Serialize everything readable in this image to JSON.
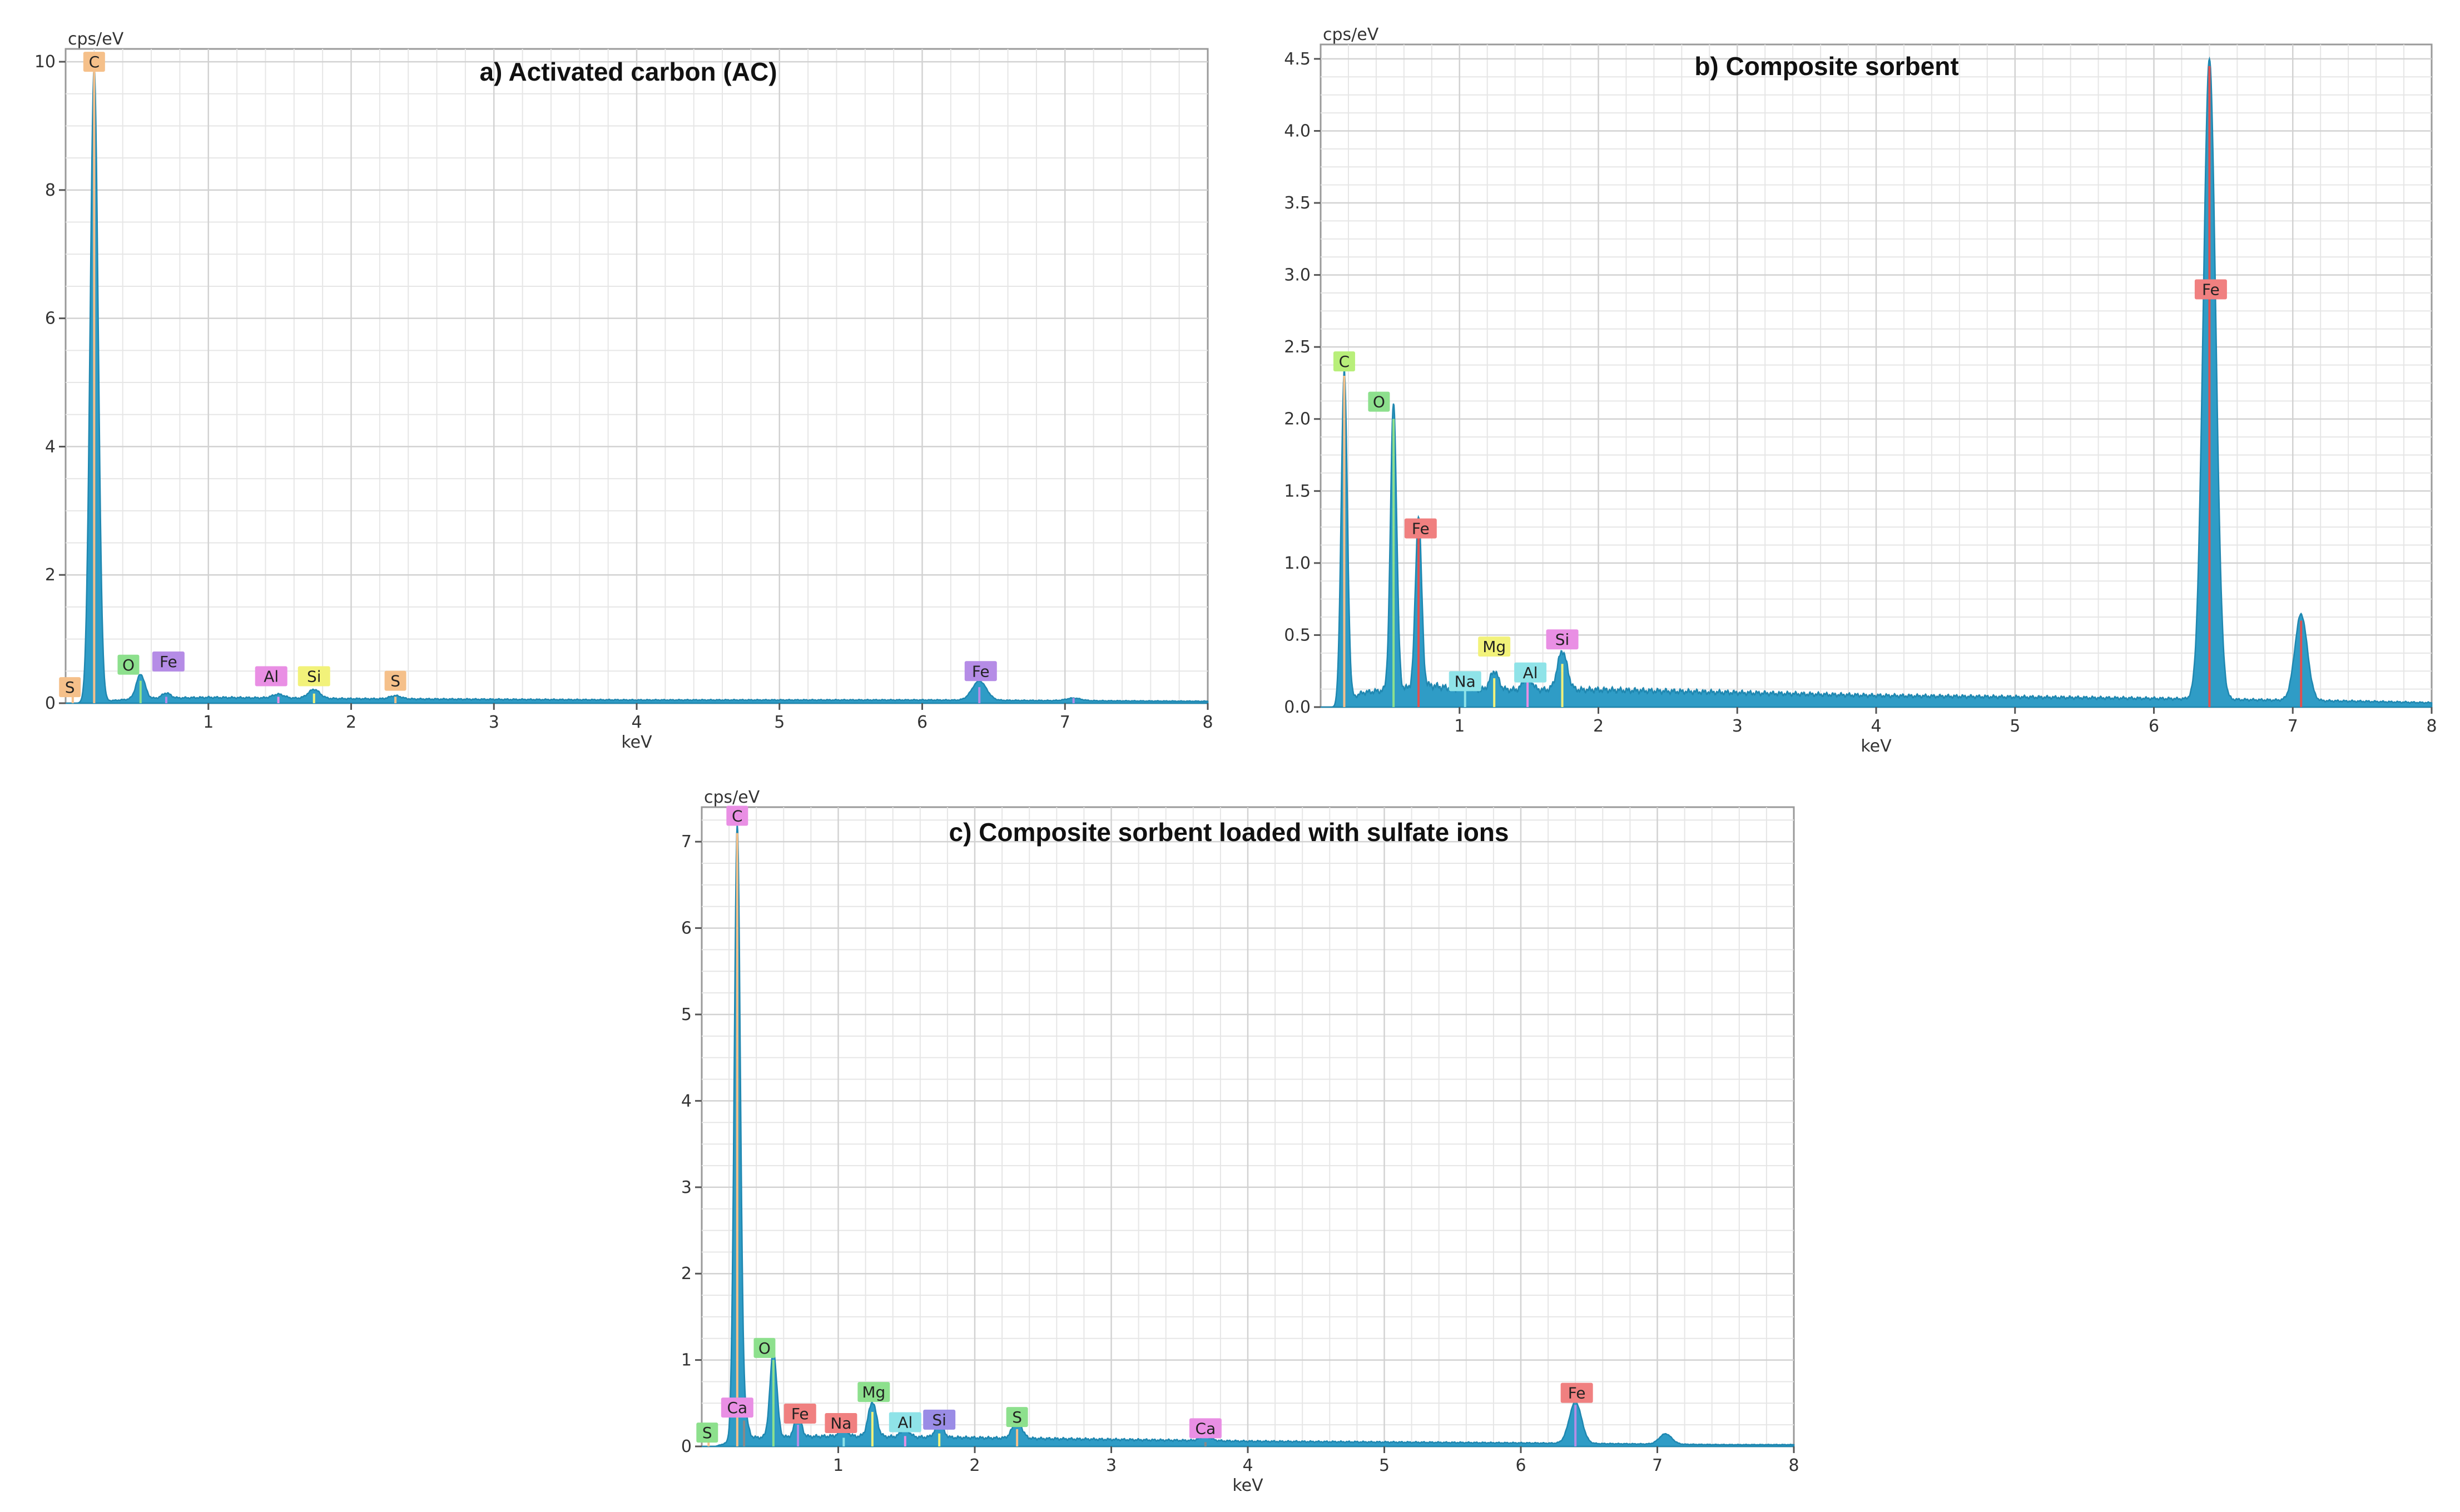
{
  "colors": {
    "spectrum": "#2f9cc6",
    "C": "#f5c08a",
    "O": "#8de08d",
    "Fe": "#b58ce6",
    "Al": "#e98fe4",
    "Si": "#f2f27a",
    "S": "#f5c08a",
    "Na": "#8fe3e8",
    "Mg": "#f2f27a"
  },
  "chart_data": [
    {
      "type": "line",
      "title": "a) Activated carbon (AC)",
      "xlabel": "keV",
      "ylabel": "cps/eV",
      "xlim": [
        0,
        8
      ],
      "ylim": [
        0,
        10.2
      ],
      "x_ticks": [
        1,
        2,
        3,
        4,
        5,
        6,
        7,
        8
      ],
      "x_tick_labels": [
        "1",
        "2",
        "3",
        "4",
        "5",
        "6",
        "7",
        "8"
      ],
      "y_ticks": [
        0,
        2,
        4,
        6,
        8,
        10
      ],
      "y_tick_labels": [
        "0",
        "2",
        "4",
        "6",
        "8",
        "10"
      ],
      "grid": true,
      "baseline": [
        [
          0.08,
          0.0
        ],
        [
          0.5,
          0.07
        ],
        [
          1.0,
          0.09
        ],
        [
          2.0,
          0.07
        ],
        [
          3.0,
          0.06
        ],
        [
          4.0,
          0.05
        ],
        [
          5.0,
          0.05
        ],
        [
          6.0,
          0.05
        ],
        [
          7.0,
          0.04
        ],
        [
          8.0,
          0.03
        ]
      ],
      "peaks": [
        {
          "x": 0.2,
          "y": 9.9,
          "w": 0.028
        },
        {
          "x": 0.525,
          "y": 0.38,
          "w": 0.03
        },
        {
          "x": 0.705,
          "y": 0.08,
          "w": 0.03
        },
        {
          "x": 1.49,
          "y": 0.06,
          "w": 0.04
        },
        {
          "x": 1.74,
          "y": 0.14,
          "w": 0.04
        },
        {
          "x": 2.31,
          "y": 0.05,
          "w": 0.04
        },
        {
          "x": 6.4,
          "y": 0.3,
          "w": 0.05
        },
        {
          "x": 7.06,
          "y": 0.04,
          "w": 0.05
        }
      ],
      "element_labels": [
        {
          "el": "C",
          "x": 0.2,
          "y": 10.0,
          "text": "C"
        },
        {
          "el": "S",
          "x": 0.03,
          "y": 0.25,
          "text": "S"
        },
        {
          "el": "O",
          "x": 0.44,
          "y": 0.6,
          "text": "O"
        },
        {
          "el": "Fe",
          "x": 0.72,
          "y": 0.65,
          "text": "Fe"
        },
        {
          "el": "Al",
          "x": 1.44,
          "y": 0.42,
          "text": "Al"
        },
        {
          "el": "Si",
          "x": 1.74,
          "y": 0.42,
          "text": "Si"
        },
        {
          "el": "S",
          "x": 2.31,
          "y": 0.35,
          "text": "S"
        },
        {
          "el": "Fe",
          "x": 6.41,
          "y": 0.5,
          "text": "Fe"
        }
      ],
      "peak_lines": [
        {
          "x": 0.05,
          "y": 0.2,
          "el": "S"
        },
        {
          "x": 0.2,
          "y": 9.9,
          "el": "C"
        },
        {
          "x": 0.525,
          "y": 0.35,
          "el": "O"
        },
        {
          "x": 0.705,
          "y": 0.1,
          "el": "Fe"
        },
        {
          "x": 1.49,
          "y": 0.1,
          "el": "Al"
        },
        {
          "x": 1.74,
          "y": 0.15,
          "el": "Si"
        },
        {
          "x": 2.31,
          "y": 0.1,
          "el": "S"
        },
        {
          "x": 6.4,
          "y": 0.25,
          "el": "Fe"
        },
        {
          "x": 7.06,
          "y": 0.08,
          "el": "Fe"
        }
      ]
    },
    {
      "type": "line",
      "title": "b) Composite sorbent",
      "xlabel": "keV",
      "ylabel": "cps/eV",
      "xlim": [
        0,
        8
      ],
      "ylim": [
        0,
        4.6
      ],
      "x_ticks": [
        1,
        2,
        3,
        4,
        5,
        6,
        7,
        8
      ],
      "x_tick_labels": [
        "1",
        "2",
        "3",
        "4",
        "5",
        "6",
        "7",
        "8"
      ],
      "y_ticks": [
        0,
        0.5,
        1.0,
        1.5,
        2.0,
        2.5,
        3.0,
        3.5,
        4.0,
        4.5
      ],
      "y_tick_labels": [
        "0.0",
        "0.5",
        "1.0",
        "1.5",
        "2.0",
        "2.5",
        "3.0",
        "3.5",
        "4.0",
        "4.5"
      ],
      "grid": true,
      "baseline": [
        [
          0.1,
          0.0
        ],
        [
          0.3,
          0.1
        ],
        [
          0.8,
          0.15
        ],
        [
          1.0,
          0.12
        ],
        [
          2.0,
          0.12
        ],
        [
          3.0,
          0.1
        ],
        [
          4.0,
          0.08
        ],
        [
          5.0,
          0.07
        ],
        [
          6.0,
          0.06
        ],
        [
          7.5,
          0.04
        ],
        [
          8.0,
          0.03
        ]
      ],
      "peaks": [
        {
          "x": 0.17,
          "y": 2.3,
          "w": 0.022
        },
        {
          "x": 0.525,
          "y": 2.0,
          "w": 0.022
        },
        {
          "x": 0.705,
          "y": 1.2,
          "w": 0.022
        },
        {
          "x": 1.04,
          "y": 0.06,
          "w": 0.03
        },
        {
          "x": 1.25,
          "y": 0.13,
          "w": 0.03
        },
        {
          "x": 1.49,
          "y": 0.1,
          "w": 0.03
        },
        {
          "x": 1.74,
          "y": 0.27,
          "w": 0.035
        },
        {
          "x": 6.4,
          "y": 4.45,
          "w": 0.045
        },
        {
          "x": 7.06,
          "y": 0.6,
          "w": 0.045
        }
      ],
      "element_labels": [
        {
          "el": "C",
          "x": 0.17,
          "y": 2.4,
          "text": "C"
        },
        {
          "el": "O",
          "x": 0.42,
          "y": 2.12,
          "text": "O"
        },
        {
          "el": "Fe",
          "x": 0.72,
          "y": 1.24,
          "text": "Fe"
        },
        {
          "el": "Na",
          "x": 1.04,
          "y": 0.18,
          "text": "Na"
        },
        {
          "el": "Mg",
          "x": 1.25,
          "y": 0.42,
          "text": "Mg"
        },
        {
          "el": "Al",
          "x": 1.51,
          "y": 0.24,
          "text": "Al"
        },
        {
          "el": "Si",
          "x": 1.74,
          "y": 0.47,
          "text": "Si"
        },
        {
          "el": "Fe",
          "x": 6.41,
          "y": 2.9,
          "text": "Fe"
        }
      ],
      "peak_lines": [
        {
          "x": 0.17,
          "y": 2.3,
          "el": "C"
        },
        {
          "x": 0.525,
          "y": 2.0,
          "el": "O"
        },
        {
          "x": 0.705,
          "y": 1.2,
          "el": "Fe"
        },
        {
          "x": 1.04,
          "y": 0.2,
          "el": "Na"
        },
        {
          "x": 1.25,
          "y": 0.2,
          "el": "Mg"
        },
        {
          "x": 1.49,
          "y": 0.2,
          "el": "Al"
        },
        {
          "x": 1.74,
          "y": 0.3,
          "el": "Si"
        },
        {
          "x": 6.4,
          "y": 4.45,
          "el": "Fe"
        },
        {
          "x": 7.06,
          "y": 0.6,
          "el": "Fe"
        }
      ]
    },
    {
      "type": "line",
      "title": "c) Composite sorbent loaded with sulfate ions",
      "xlabel": "keV",
      "ylabel": "cps/eV",
      "xlim": [
        0,
        8
      ],
      "ylim": [
        0,
        7.4
      ],
      "x_ticks": [
        1,
        2,
        3,
        4,
        5,
        6,
        7,
        8
      ],
      "x_tick_labels": [
        "1",
        "2",
        "3",
        "4",
        "5",
        "6",
        "7",
        "8"
      ],
      "y_ticks": [
        0,
        1,
        2,
        3,
        4,
        5,
        6,
        7
      ],
      "y_tick_labels": [
        "0",
        "1",
        "2",
        "3",
        "4",
        "5",
        "6",
        "7"
      ],
      "grid": true,
      "baseline": [
        [
          0.1,
          0.0
        ],
        [
          0.3,
          0.1
        ],
        [
          1.0,
          0.12
        ],
        [
          2.0,
          0.1
        ],
        [
          3.0,
          0.08
        ],
        [
          4.0,
          0.06
        ],
        [
          5.0,
          0.05
        ],
        [
          6.0,
          0.04
        ],
        [
          7.5,
          0.02
        ],
        [
          8.0,
          0.02
        ]
      ],
      "peaks": [
        {
          "x": 0.26,
          "y": 7.1,
          "w": 0.022
        },
        {
          "x": 0.31,
          "y": 0.3,
          "w": 0.025
        },
        {
          "x": 0.525,
          "y": 1.0,
          "w": 0.025
        },
        {
          "x": 0.705,
          "y": 0.25,
          "w": 0.025
        },
        {
          "x": 1.04,
          "y": 0.08,
          "w": 0.03
        },
        {
          "x": 1.25,
          "y": 0.4,
          "w": 0.03
        },
        {
          "x": 1.49,
          "y": 0.1,
          "w": 0.03
        },
        {
          "x": 1.74,
          "y": 0.15,
          "w": 0.03
        },
        {
          "x": 2.31,
          "y": 0.2,
          "w": 0.035
        },
        {
          "x": 3.69,
          "y": 0.05,
          "w": 0.04
        },
        {
          "x": 6.4,
          "y": 0.48,
          "w": 0.045
        },
        {
          "x": 7.06,
          "y": 0.12,
          "w": 0.045
        }
      ],
      "element_labels": [
        {
          "el": "C",
          "x": 0.26,
          "y": 7.3,
          "text": "C"
        },
        {
          "el": "S",
          "x": 0.04,
          "y": 0.16,
          "text": "S"
        },
        {
          "el": "Ca",
          "x": 0.26,
          "y": 0.45,
          "text": "Ca"
        },
        {
          "el": "O",
          "x": 0.46,
          "y": 1.14,
          "text": "O"
        },
        {
          "el": "Fe",
          "x": 0.72,
          "y": 0.38,
          "text": "Fe"
        },
        {
          "el": "Na",
          "x": 1.02,
          "y": 0.27,
          "text": "Na"
        },
        {
          "el": "Mg",
          "x": 1.26,
          "y": 0.63,
          "text": "Mg"
        },
        {
          "el": "Al",
          "x": 1.49,
          "y": 0.28,
          "text": "Al"
        },
        {
          "el": "Si",
          "x": 1.74,
          "y": 0.31,
          "text": "Si"
        },
        {
          "el": "S",
          "x": 2.31,
          "y": 0.34,
          "text": "S"
        },
        {
          "el": "Ca",
          "x": 3.69,
          "y": 0.21,
          "text": "Ca"
        },
        {
          "el": "Fe",
          "x": 6.41,
          "y": 0.62,
          "text": "Fe"
        }
      ],
      "peak_lines": [
        {
          "x": 0.05,
          "y": 0.1,
          "el": "S"
        },
        {
          "x": 0.26,
          "y": 7.1,
          "el": "C"
        },
        {
          "x": 0.31,
          "y": 0.3,
          "el": "Ca"
        },
        {
          "x": 0.525,
          "y": 1.0,
          "el": "O"
        },
        {
          "x": 0.705,
          "y": 0.25,
          "el": "Fe"
        },
        {
          "x": 1.04,
          "y": 0.1,
          "el": "Na"
        },
        {
          "x": 1.25,
          "y": 0.4,
          "el": "Mg"
        },
        {
          "x": 1.49,
          "y": 0.12,
          "el": "Al"
        },
        {
          "x": 1.74,
          "y": 0.15,
          "el": "Si"
        },
        {
          "x": 2.31,
          "y": 0.2,
          "el": "S"
        },
        {
          "x": 3.69,
          "y": 0.05,
          "el": "Ca"
        },
        {
          "x": 6.4,
          "y": 0.48,
          "el": "Fe"
        }
      ]
    }
  ]
}
